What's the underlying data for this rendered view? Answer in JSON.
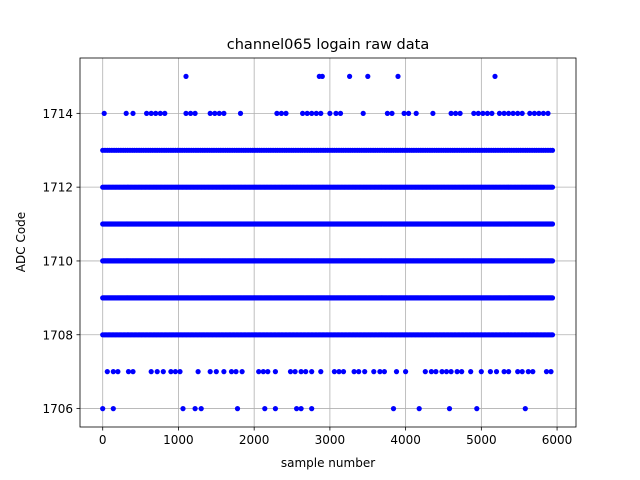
{
  "chart_data": {
    "type": "scatter",
    "title": "channel065 logain raw data",
    "xlabel": "sample number",
    "ylabel": "ADC Code",
    "xlim": [
      -300,
      6250
    ],
    "ylim": [
      1705.5,
      1715.5
    ],
    "xticks": [
      0,
      1000,
      2000,
      3000,
      4000,
      5000,
      6000
    ],
    "yticks": [
      1706,
      1708,
      1710,
      1712,
      1714
    ],
    "grid": true,
    "marker_color": "#0000ff",
    "x_range": [
      0,
      5940
    ],
    "series": [
      {
        "dense_rows": [
          {
            "y": 1708,
            "step": 18
          },
          {
            "y": 1709,
            "step": 12
          },
          {
            "y": 1710,
            "step": 10
          },
          {
            "y": 1711,
            "step": 12
          },
          {
            "y": 1712,
            "step": 18
          },
          {
            "y": 1713,
            "step": 30
          }
        ],
        "points": [
          [
            20,
            1714
          ],
          [
            310,
            1714
          ],
          [
            400,
            1714
          ],
          [
            580,
            1714
          ],
          [
            640,
            1714
          ],
          [
            700,
            1714
          ],
          [
            760,
            1714
          ],
          [
            820,
            1714
          ],
          [
            1100,
            1714
          ],
          [
            1160,
            1714
          ],
          [
            1220,
            1714
          ],
          [
            1420,
            1714
          ],
          [
            1480,
            1714
          ],
          [
            1540,
            1714
          ],
          [
            1600,
            1714
          ],
          [
            1820,
            1714
          ],
          [
            2300,
            1714
          ],
          [
            2360,
            1714
          ],
          [
            2420,
            1714
          ],
          [
            2640,
            1714
          ],
          [
            2700,
            1714
          ],
          [
            2760,
            1714
          ],
          [
            2820,
            1714
          ],
          [
            2880,
            1714
          ],
          [
            3000,
            1714
          ],
          [
            3080,
            1714
          ],
          [
            3140,
            1714
          ],
          [
            3440,
            1714
          ],
          [
            3760,
            1714
          ],
          [
            3820,
            1714
          ],
          [
            3980,
            1714
          ],
          [
            4040,
            1714
          ],
          [
            4140,
            1714
          ],
          [
            4360,
            1714
          ],
          [
            4600,
            1714
          ],
          [
            4660,
            1714
          ],
          [
            4720,
            1714
          ],
          [
            4900,
            1714
          ],
          [
            4960,
            1714
          ],
          [
            5020,
            1714
          ],
          [
            5080,
            1714
          ],
          [
            5140,
            1714
          ],
          [
            5240,
            1714
          ],
          [
            5300,
            1714
          ],
          [
            5360,
            1714
          ],
          [
            5420,
            1714
          ],
          [
            5480,
            1714
          ],
          [
            5540,
            1714
          ],
          [
            5640,
            1714
          ],
          [
            5700,
            1714
          ],
          [
            5760,
            1714
          ],
          [
            5820,
            1714
          ],
          [
            5880,
            1714
          ],
          [
            1100,
            1715
          ],
          [
            2860,
            1715
          ],
          [
            2900,
            1715
          ],
          [
            3260,
            1715
          ],
          [
            3500,
            1715
          ],
          [
            3900,
            1715
          ],
          [
            5180,
            1715
          ],
          [
            60,
            1707
          ],
          [
            140,
            1707
          ],
          [
            200,
            1707
          ],
          [
            340,
            1707
          ],
          [
            400,
            1707
          ],
          [
            640,
            1707
          ],
          [
            720,
            1707
          ],
          [
            800,
            1707
          ],
          [
            900,
            1707
          ],
          [
            960,
            1707
          ],
          [
            1020,
            1707
          ],
          [
            1260,
            1707
          ],
          [
            1420,
            1707
          ],
          [
            1500,
            1707
          ],
          [
            1600,
            1707
          ],
          [
            1700,
            1707
          ],
          [
            1760,
            1707
          ],
          [
            1840,
            1707
          ],
          [
            2060,
            1707
          ],
          [
            2120,
            1707
          ],
          [
            2180,
            1707
          ],
          [
            2280,
            1707
          ],
          [
            2480,
            1707
          ],
          [
            2540,
            1707
          ],
          [
            2620,
            1707
          ],
          [
            2680,
            1707
          ],
          [
            2760,
            1707
          ],
          [
            2880,
            1707
          ],
          [
            3060,
            1707
          ],
          [
            3120,
            1707
          ],
          [
            3180,
            1707
          ],
          [
            3320,
            1707
          ],
          [
            3380,
            1707
          ],
          [
            3460,
            1707
          ],
          [
            3580,
            1707
          ],
          [
            3660,
            1707
          ],
          [
            3720,
            1707
          ],
          [
            3880,
            1707
          ],
          [
            4000,
            1707
          ],
          [
            4260,
            1707
          ],
          [
            4340,
            1707
          ],
          [
            4400,
            1707
          ],
          [
            4480,
            1707
          ],
          [
            4540,
            1707
          ],
          [
            4600,
            1707
          ],
          [
            4680,
            1707
          ],
          [
            4740,
            1707
          ],
          [
            4860,
            1707
          ],
          [
            5000,
            1707
          ],
          [
            5120,
            1707
          ],
          [
            5200,
            1707
          ],
          [
            5300,
            1707
          ],
          [
            5360,
            1707
          ],
          [
            5480,
            1707
          ],
          [
            5540,
            1707
          ],
          [
            5620,
            1707
          ],
          [
            5680,
            1707
          ],
          [
            5860,
            1707
          ],
          [
            5920,
            1707
          ],
          [
            0,
            1706
          ],
          [
            140,
            1706
          ],
          [
            1060,
            1706
          ],
          [
            1220,
            1706
          ],
          [
            1300,
            1706
          ],
          [
            1780,
            1706
          ],
          [
            2140,
            1706
          ],
          [
            2280,
            1706
          ],
          [
            2560,
            1706
          ],
          [
            2620,
            1706
          ],
          [
            2760,
            1706
          ],
          [
            3840,
            1706
          ],
          [
            4180,
            1706
          ],
          [
            4580,
            1706
          ],
          [
            4940,
            1706
          ],
          [
            5580,
            1706
          ]
        ]
      }
    ]
  }
}
